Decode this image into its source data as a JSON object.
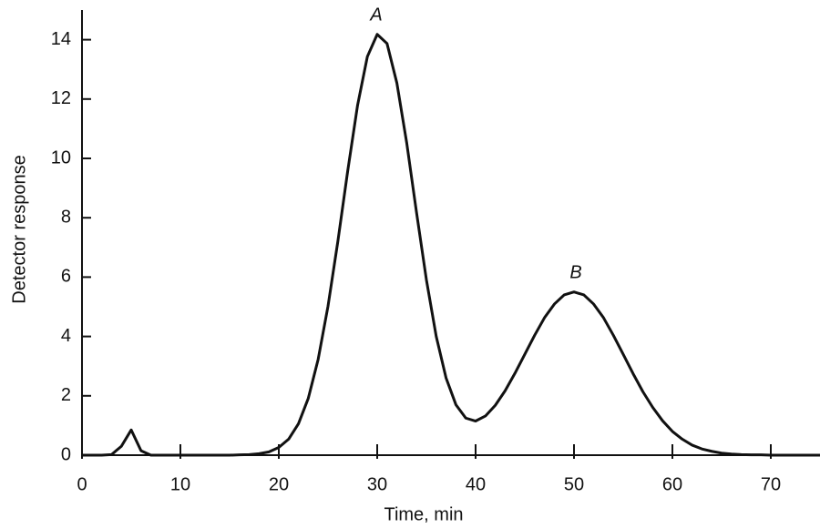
{
  "chart_data": {
    "type": "line",
    "x_label": "Time, min",
    "y_label": "Detector response",
    "annotations": [
      "A",
      "B"
    ],
    "xlim": [
      0,
      75
    ],
    "ylim": [
      0,
      15
    ],
    "xticks": [
      0,
      10,
      20,
      30,
      40,
      50,
      60,
      70
    ],
    "yticks": [
      0,
      2,
      4,
      6,
      8,
      10,
      12,
      14
    ],
    "grid": false,
    "series": [
      {
        "color": "#111111",
        "x": [
          0,
          1,
          2,
          3,
          4,
          5,
          6,
          7,
          8,
          9,
          10,
          11,
          12,
          13,
          14,
          15,
          16,
          17,
          18,
          19,
          20,
          21,
          22,
          23,
          24,
          25,
          26,
          27,
          28,
          29,
          30,
          31,
          32,
          33,
          34,
          35,
          36,
          37,
          38,
          39,
          40,
          41,
          42,
          43,
          44,
          45,
          46,
          47,
          48,
          49,
          50,
          51,
          52,
          53,
          54,
          55,
          56,
          57,
          58,
          59,
          60,
          61,
          62,
          63,
          64,
          65,
          66,
          67,
          68,
          69,
          70,
          71,
          72,
          73,
          74,
          75
        ],
        "values": [
          0,
          0,
          0,
          0.02,
          0.3,
          0.85,
          0.15,
          0,
          0,
          0,
          0,
          0,
          0,
          0,
          0,
          0,
          0.01,
          0.02,
          0.05,
          0.11,
          0.26,
          0.54,
          1.06,
          1.92,
          3.23,
          5.02,
          7.2,
          9.57,
          11.78,
          13.43,
          14.18,
          13.87,
          12.54,
          10.52,
          8.17,
          5.91,
          4.0,
          2.6,
          1.7,
          1.25,
          1.15,
          1.32,
          1.68,
          2.17,
          2.76,
          3.4,
          4.04,
          4.63,
          5.09,
          5.4,
          5.5,
          5.4,
          5.09,
          4.63,
          4.04,
          3.4,
          2.75,
          2.14,
          1.61,
          1.16,
          0.8,
          0.54,
          0.34,
          0.21,
          0.13,
          0.07,
          0.04,
          0.02,
          0.01,
          0.01,
          0,
          0,
          0,
          0,
          0,
          0
        ]
      }
    ]
  }
}
